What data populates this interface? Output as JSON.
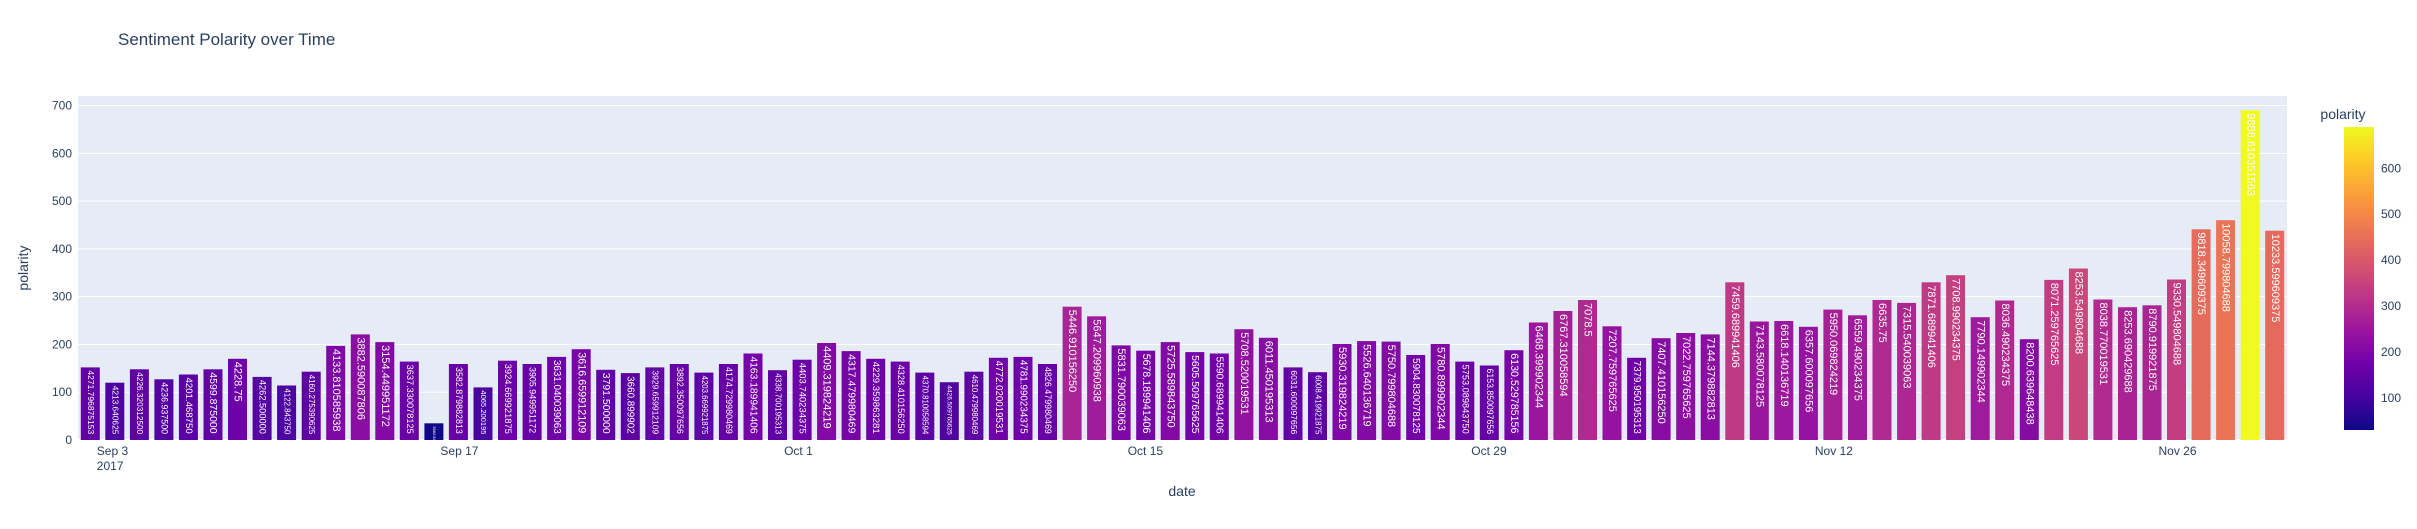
{
  "chart_data": {
    "type": "bar",
    "title": "Sentiment Polarity over Time",
    "xlabel": "date",
    "ylabel": "polarity",
    "ylim": [
      0,
      720
    ],
    "y_ticks": [
      0,
      100,
      200,
      300,
      400,
      500,
      600,
      700
    ],
    "x_ticks": [
      {
        "date": "2017-09-03",
        "label": "Sep 3",
        "sublabel": "2017"
      },
      {
        "date": "2017-09-17",
        "label": "Sep 17",
        "sublabel": ""
      },
      {
        "date": "2017-10-01",
        "label": "Oct 1",
        "sublabel": ""
      },
      {
        "date": "2017-10-15",
        "label": "Oct 15",
        "sublabel": ""
      },
      {
        "date": "2017-10-29",
        "label": "Oct 29",
        "sublabel": ""
      },
      {
        "date": "2017-11-12",
        "label": "Nov 12",
        "sublabel": ""
      },
      {
        "date": "2017-11-26",
        "label": "Nov 26",
        "sublabel": ""
      }
    ],
    "x_range": [
      "2017-09-02",
      "2017-12-01"
    ],
    "grid": true,
    "colorbar": {
      "title": "polarity",
      "range": [
        30,
        690
      ],
      "ticks": [
        100,
        200,
        300,
        400,
        500,
        600
      ],
      "colorscale": [
        "#0d0887",
        "#46039f",
        "#7201a8",
        "#9c179e",
        "#bd3786",
        "#d8576b",
        "#ed7953",
        "#fb9f3a",
        "#fdca26",
        "#f0f921"
      ]
    },
    "bars": [
      {
        "date": "2017-09-02",
        "value": 152,
        "label": "4271.796875153"
      },
      {
        "date": "2017-09-03",
        "value": 120,
        "label": "4213.640625"
      },
      {
        "date": "2017-09-04",
        "value": 148,
        "label": "4226.320312500"
      },
      {
        "date": "2017-09-05",
        "value": 127,
        "label": "4236.937500"
      },
      {
        "date": "2017-09-06",
        "value": 137,
        "label": "4201.468750"
      },
      {
        "date": "2017-09-07",
        "value": 148,
        "label": "4599.875000"
      },
      {
        "date": "2017-09-08",
        "value": 170,
        "label": "4228.75"
      },
      {
        "date": "2017-09-09",
        "value": 132,
        "label": "4262.500000"
      },
      {
        "date": "2017-09-10",
        "value": 114,
        "label": "4122.843750"
      },
      {
        "date": "2017-09-11",
        "value": 143,
        "label": "4160.275390625"
      },
      {
        "date": "2017-09-12",
        "value": 197,
        "label": "4133.810585938"
      },
      {
        "date": "2017-09-13",
        "value": 221,
        "label": "3882.590087806"
      },
      {
        "date": "2017-09-14",
        "value": 205,
        "label": "3154.449951172"
      },
      {
        "date": "2017-09-15",
        "value": 164,
        "label": "3637.330078125"
      },
      {
        "date": "2017-09-16",
        "value": 35,
        "label": "3682.849609375"
      },
      {
        "date": "2017-09-17",
        "value": 159,
        "label": "3582.879882813"
      },
      {
        "date": "2017-09-18",
        "value": 110,
        "label": "4065.200195"
      },
      {
        "date": "2017-09-19",
        "value": 166,
        "label": "3924.669921875"
      },
      {
        "date": "2017-09-20",
        "value": 159,
        "label": "3905.949951172"
      },
      {
        "date": "2017-09-21",
        "value": 174,
        "label": "3631.040039063"
      },
      {
        "date": "2017-09-22",
        "value": 190,
        "label": "3616.659912109"
      },
      {
        "date": "2017-09-23",
        "value": 147,
        "label": "3791.500000"
      },
      {
        "date": "2017-09-24",
        "value": 140,
        "label": "3660.899902"
      },
      {
        "date": "2017-09-25",
        "value": 152,
        "label": "3929.659912109"
      },
      {
        "date": "2017-09-26",
        "value": 159,
        "label": "3892.350097656"
      },
      {
        "date": "2017-09-27",
        "value": 141,
        "label": "4203.669921875"
      },
      {
        "date": "2017-09-28",
        "value": 159,
        "label": "4174.729980469"
      },
      {
        "date": "2017-09-29",
        "value": 181,
        "label": "4163.189941406"
      },
      {
        "date": "2017-09-30",
        "value": 146,
        "label": "4338.700195313"
      },
      {
        "date": "2017-10-01",
        "value": 168,
        "label": "4403.740234375"
      },
      {
        "date": "2017-10-02",
        "value": 203,
        "label": "4409.319824219"
      },
      {
        "date": "2017-10-03",
        "value": 186,
        "label": "4317.479980469"
      },
      {
        "date": "2017-10-04",
        "value": 170,
        "label": "4229.359863281"
      },
      {
        "date": "2017-10-05",
        "value": 164,
        "label": "4328.410156250"
      },
      {
        "date": "2017-10-06",
        "value": 141,
        "label": "4370.810058594"
      },
      {
        "date": "2017-10-07",
        "value": 121,
        "label": "4426.509765625"
      },
      {
        "date": "2017-10-08",
        "value": 143,
        "label": "4610.479980469"
      },
      {
        "date": "2017-10-09",
        "value": 172,
        "label": "4772.020019531"
      },
      {
        "date": "2017-10-10",
        "value": 174,
        "label": "4781.990234375"
      },
      {
        "date": "2017-10-11",
        "value": 159,
        "label": "4826.479980469"
      },
      {
        "date": "2017-10-12",
        "value": 279,
        "label": "5446.910156250"
      },
      {
        "date": "2017-10-13",
        "value": 259,
        "label": "5647.209960938"
      },
      {
        "date": "2017-10-14",
        "value": 198,
        "label": "5831.790039063"
      },
      {
        "date": "2017-10-15",
        "value": 187,
        "label": "5678.189941406"
      },
      {
        "date": "2017-10-16",
        "value": 205,
        "label": "5725.589843750"
      },
      {
        "date": "2017-10-17",
        "value": 184,
        "label": "5605.509765625"
      },
      {
        "date": "2017-10-18",
        "value": 181,
        "label": "5590.689941406"
      },
      {
        "date": "2017-10-19",
        "value": 232,
        "label": "5708.520019531"
      },
      {
        "date": "2017-10-20",
        "value": 214,
        "label": "6011.450195313"
      },
      {
        "date": "2017-10-21",
        "value": 152,
        "label": "6031.600097656"
      },
      {
        "date": "2017-10-22",
        "value": 142,
        "label": "6008.419921875"
      },
      {
        "date": "2017-10-23",
        "value": 201,
        "label": "5930.319824219"
      },
      {
        "date": "2017-10-24",
        "value": 207,
        "label": "5526.640136719"
      },
      {
        "date": "2017-10-25",
        "value": 206,
        "label": "5750.799804688"
      },
      {
        "date": "2017-10-26",
        "value": 178,
        "label": "5904.830078125"
      },
      {
        "date": "2017-10-27",
        "value": 201,
        "label": "5780.899902344"
      },
      {
        "date": "2017-10-28",
        "value": 164,
        "label": "5753.089843750"
      },
      {
        "date": "2017-10-29",
        "value": 156,
        "label": "6153.850097656"
      },
      {
        "date": "2017-10-30",
        "value": 188,
        "label": "6130.529785156"
      },
      {
        "date": "2017-10-31",
        "value": 246,
        "label": "6468.399902344"
      },
      {
        "date": "2017-11-01",
        "value": 270,
        "label": "6767.310058594"
      },
      {
        "date": "2017-11-02",
        "value": 293,
        "label": "7078.5"
      },
      {
        "date": "2017-11-03",
        "value": 238,
        "label": "7207.759765625"
      },
      {
        "date": "2017-11-04",
        "value": 172,
        "label": "7379.950195313"
      },
      {
        "date": "2017-11-05",
        "value": 213,
        "label": "7407.410156250"
      },
      {
        "date": "2017-11-06",
        "value": 224,
        "label": "7022.759765625"
      },
      {
        "date": "2017-11-07",
        "value": 221,
        "label": "7144.379882813"
      },
      {
        "date": "2017-11-08",
        "value": 330,
        "label": "7459.689941406"
      },
      {
        "date": "2017-11-09",
        "value": 248,
        "label": "7143.580078125"
      },
      {
        "date": "2017-11-10",
        "value": 249,
        "label": "6618.140136719"
      },
      {
        "date": "2017-11-11",
        "value": 237,
        "label": "6357.600097656"
      },
      {
        "date": "2017-11-12",
        "value": 273,
        "label": "5950.069824219"
      },
      {
        "date": "2017-11-13",
        "value": 261,
        "label": "6559.490234375"
      },
      {
        "date": "2017-11-14",
        "value": 293,
        "label": "6635.75"
      },
      {
        "date": "2017-11-15",
        "value": 287,
        "label": "7315.540039063"
      },
      {
        "date": "2017-11-16",
        "value": 330,
        "label": "7871.689941406"
      },
      {
        "date": "2017-11-17",
        "value": 345,
        "label": "7708.990234375"
      },
      {
        "date": "2017-11-18",
        "value": 257,
        "label": "7790.149902344"
      },
      {
        "date": "2017-11-19",
        "value": 292,
        "label": "8036.490234375"
      },
      {
        "date": "2017-11-20",
        "value": 211,
        "label": "8200.639648438"
      },
      {
        "date": "2017-11-21",
        "value": 335,
        "label": "8071.259765625"
      },
      {
        "date": "2017-11-22",
        "value": 359,
        "label": "8253.549804688"
      },
      {
        "date": "2017-11-23",
        "value": 294,
        "label": "8038.770019531"
      },
      {
        "date": "2017-11-24",
        "value": 278,
        "label": "8253.690429688"
      },
      {
        "date": "2017-11-25",
        "value": 282,
        "label": "8790.919921875"
      },
      {
        "date": "2017-11-26",
        "value": 336,
        "label": "9330.549804688"
      },
      {
        "date": "2017-11-27",
        "value": 441,
        "label": "9818.349609375"
      },
      {
        "date": "2017-11-28",
        "value": 460,
        "label": "10058.799804688"
      },
      {
        "date": "2017-11-29",
        "value": 690,
        "label": "9888.610351563"
      },
      {
        "date": "2017-11-30",
        "value": 438,
        "label": "10233.599609375"
      }
    ]
  }
}
